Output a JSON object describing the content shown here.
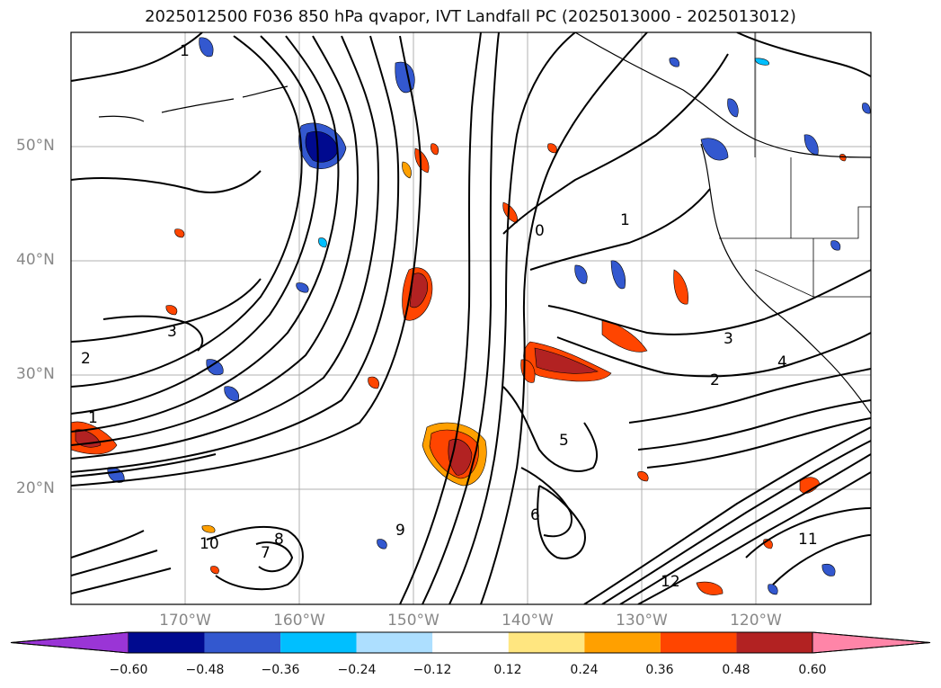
{
  "title": "2025012500 F036 850 hPa qvapor, IVT Landfall PC (2025013000 - 2025013012)",
  "lat_labels": [
    "50°N",
    "40°N",
    "30°N",
    "20°N"
  ],
  "lon_labels": [
    "170°W",
    "160°W",
    "150°W",
    "140°W",
    "130°W",
    "120°W"
  ],
  "colorbar": {
    "ticks": [
      "−0.60",
      "−0.48",
      "−0.36",
      "−0.24",
      "−0.12",
      "0.12",
      "0.24",
      "0.36",
      "0.48",
      "0.60"
    ],
    "colors": [
      "#9a35d6",
      "#000a8f",
      "#3358cf",
      "#00bfff",
      "#addfff",
      "#ffffff",
      "#ffe680",
      "#ffa000",
      "#ff4500",
      "#b22222",
      "#ff85a8"
    ]
  },
  "contour_labels": [
    "1",
    "1",
    "1",
    "2",
    "2",
    "3",
    "3",
    "4",
    "5",
    "6",
    "7",
    "8",
    "9",
    "10",
    "11",
    "12",
    "0"
  ]
}
